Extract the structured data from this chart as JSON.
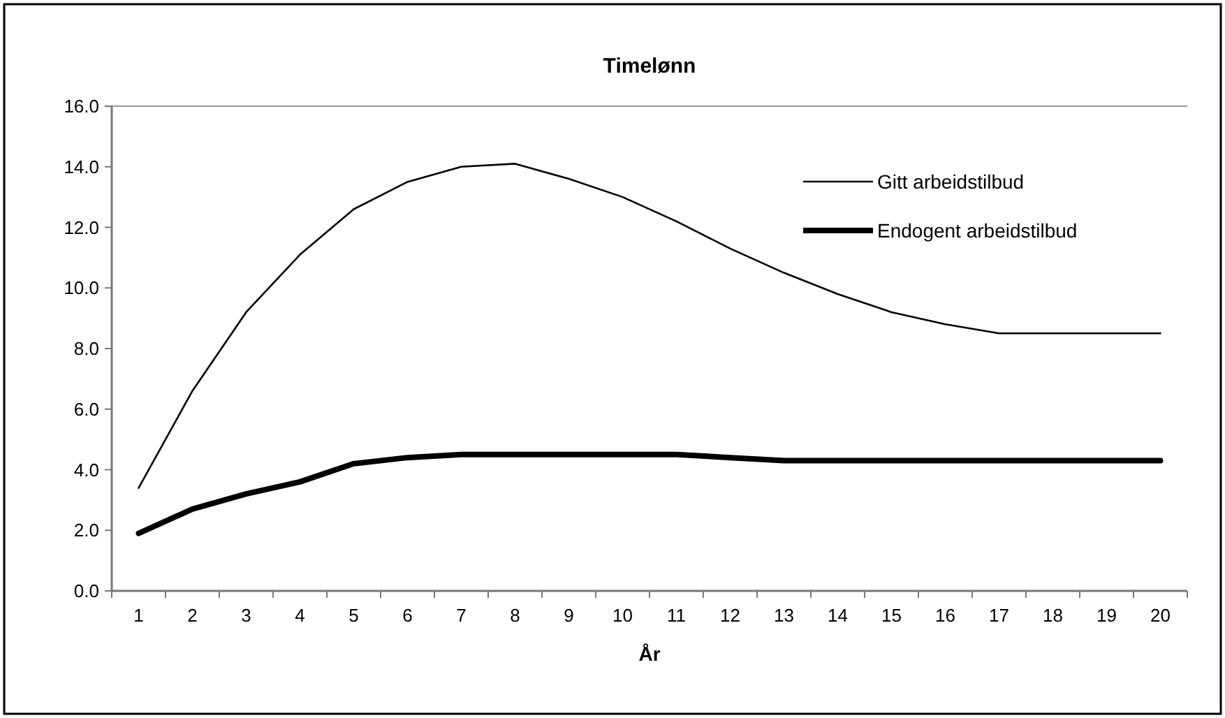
{
  "chart_data": {
    "type": "line",
    "title": "Timelønn",
    "xlabel": "År",
    "x": [
      1,
      2,
      3,
      4,
      5,
      6,
      7,
      8,
      9,
      10,
      11,
      12,
      13,
      14,
      15,
      16,
      17,
      18,
      19,
      20
    ],
    "xlim": [
      0.5,
      20.5
    ],
    "xticks": [
      1,
      2,
      3,
      4,
      5,
      6,
      7,
      8,
      9,
      10,
      11,
      12,
      13,
      14,
      15,
      16,
      17,
      18,
      19,
      20
    ],
    "series": [
      {
        "name": "Gitt arbeidstilbud",
        "color": "#000000",
        "values": [
          3.4,
          6.6,
          9.2,
          11.1,
          12.6,
          13.5,
          14.0,
          14.1,
          13.6,
          13.0,
          12.2,
          11.3,
          10.5,
          9.8,
          9.2,
          8.8,
          8.5,
          8.5,
          8.5,
          8.5
        ]
      },
      {
        "name": "Endogent arbeidstilbud",
        "color": "#000000",
        "values": [
          1.9,
          2.7,
          3.2,
          3.6,
          4.2,
          4.4,
          4.5,
          4.5,
          4.5,
          4.5,
          4.5,
          4.4,
          4.3,
          4.3,
          4.3,
          4.3,
          4.3,
          4.3,
          4.3,
          4.3
        ]
      }
    ],
    "ylim": [
      0,
      16
    ],
    "yticks": [
      {
        "value": 0,
        "label": "0.0"
      },
      {
        "value": 2,
        "label": "2.0"
      },
      {
        "value": 4,
        "label": "4.0"
      },
      {
        "value": 6,
        "label": "6.0"
      },
      {
        "value": 8,
        "label": "8.0"
      },
      {
        "value": 10,
        "label": "10.0"
      },
      {
        "value": 12,
        "label": "12.0"
      },
      {
        "value": 14,
        "label": "14.0"
      },
      {
        "value": 16,
        "label": "16.0"
      }
    ],
    "legend": "top right",
    "marker": "none",
    "line_style": "solid"
  }
}
